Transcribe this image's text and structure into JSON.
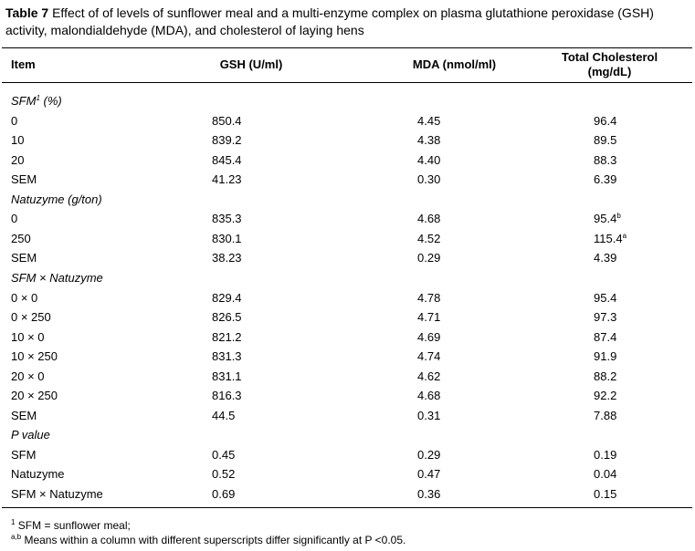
{
  "caption": {
    "label": "Table 7",
    "text": "Effect of of levels of sunflower meal and a multi-enzyme complex on plasma glutathione peroxidase (GSH) activity, malondialdehyde (MDA), and cholesterol of laying hens"
  },
  "table": {
    "headers": [
      "Item",
      "GSH (U/ml)",
      "MDA (nmol/ml)",
      "Total Cholesterol (mg/dL)"
    ],
    "sections": [
      {
        "title": "SFM",
        "title_sup": "1",
        "title_suffix": " (%)",
        "rows": [
          [
            "0",
            "850.4",
            "4.45",
            "96.4"
          ],
          [
            "10",
            "839.2",
            "4.38",
            "89.5"
          ],
          [
            "20",
            "845.4",
            "4.40",
            "88.3"
          ],
          [
            "SEM",
            "41.23",
            "0.30",
            "6.39"
          ]
        ]
      },
      {
        "title": "Natuzyme (g/ton)",
        "rows": [
          [
            "0",
            "835.3",
            "4.68",
            {
              "value": "95.4",
              "sup": "b"
            }
          ],
          [
            "250",
            "830.1",
            "4.52",
            {
              "value": "115.4",
              "sup": "a"
            }
          ],
          [
            "SEM",
            "38.23",
            "0.29",
            "4.39"
          ]
        ]
      },
      {
        "title": "SFM × Natuzyme",
        "rows": [
          [
            "0 × 0",
            "829.4",
            "4.78",
            "95.4"
          ],
          [
            "0 × 250",
            "826.5",
            "4.71",
            "97.3"
          ],
          [
            "10 × 0",
            "821.2",
            "4.69",
            "87.4"
          ],
          [
            "10 × 250",
            "831.3",
            "4.74",
            "91.9"
          ],
          [
            "20 × 0",
            "831.1",
            "4.62",
            "88.2"
          ],
          [
            "20 × 250",
            "816.3",
            "4.68",
            "92.2"
          ],
          [
            "SEM",
            "44.5",
            "0.31",
            "7.88"
          ]
        ]
      },
      {
        "title": "P value",
        "rows": [
          [
            "SFM",
            "0.45",
            "0.29",
            "0.19"
          ],
          [
            "Natuzyme",
            "0.52",
            "0.47",
            "0.04"
          ],
          [
            "SFM × Natuzyme",
            "0.69",
            "0.36",
            "0.15"
          ]
        ]
      }
    ]
  },
  "footnotes": [
    {
      "sup": "1",
      "text": " SFM = sunflower meal;"
    },
    {
      "sup": "a,b",
      "text": " Means within a column with different superscripts differ significantly at P <0.05."
    }
  ]
}
